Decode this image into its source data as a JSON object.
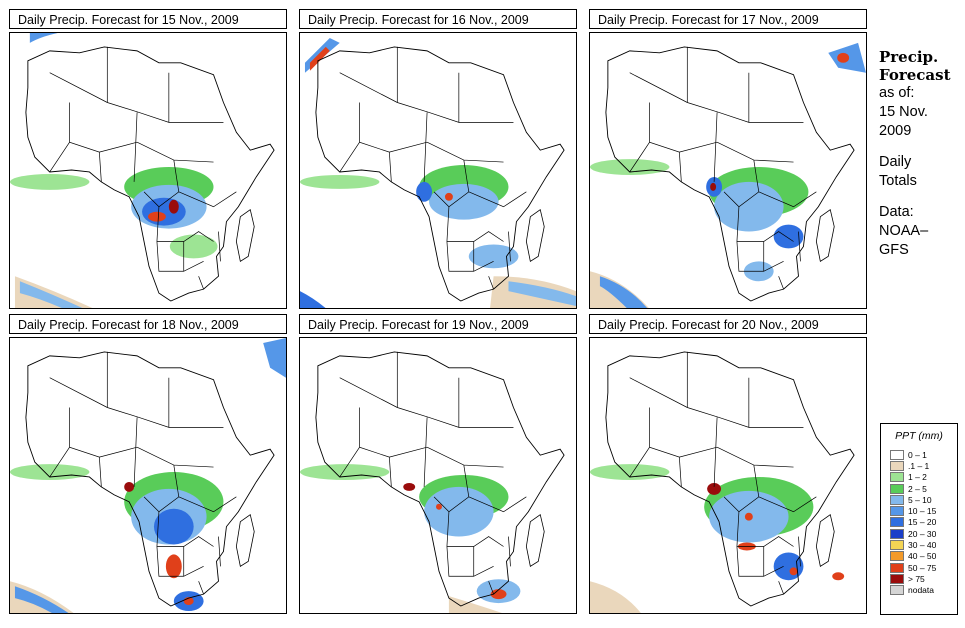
{
  "panels": [
    {
      "title": "Daily Precip. Forecast for  15 Nov., 2009"
    },
    {
      "title": "Daily Precip. Forecast for  16 Nov., 2009"
    },
    {
      "title": "Daily Precip. Forecast for  17 Nov., 2009"
    },
    {
      "title": "Daily Precip. Forecast for  18 Nov., 2009"
    },
    {
      "title": "Daily Precip. Forecast for  19 Nov., 2009"
    },
    {
      "title": "Daily Precip. Forecast for  20 Nov., 2009"
    }
  ],
  "side": {
    "heading1": "Precip.",
    "heading2": "Forecast",
    "asof": "as of:",
    "date1": "15 Nov.",
    "date2": "2009",
    "daily": "Daily",
    "totals": "Totals",
    "data": "Data:",
    "source1": "NOAA–",
    "source2": "GFS"
  },
  "legend": {
    "title": "PPT (mm)",
    "items": [
      {
        "label": "0 – 1",
        "color": "#ffffff"
      },
      {
        "label": ".1 – 1",
        "color": "#ead7bc"
      },
      {
        "label": "1 – 2",
        "color": "#9de494"
      },
      {
        "label": "2 – 5",
        "color": "#59cc59"
      },
      {
        "label": "5 – 10",
        "color": "#83b9ec"
      },
      {
        "label": "10 – 15",
        "color": "#5597e8"
      },
      {
        "label": "15 – 20",
        "color": "#2f6fe0"
      },
      {
        "label": "20 – 30",
        "color": "#1a3ec8"
      },
      {
        "label": "30 – 40",
        "color": "#f3d454"
      },
      {
        "label": "40 – 50",
        "color": "#f39a2a"
      },
      {
        "label": "50 – 75",
        "color": "#e0401a"
      },
      {
        "label": "> 75",
        "color": "#9a0c0c"
      },
      {
        "label": "nodata",
        "color": "#d5d5d5"
      }
    ]
  }
}
